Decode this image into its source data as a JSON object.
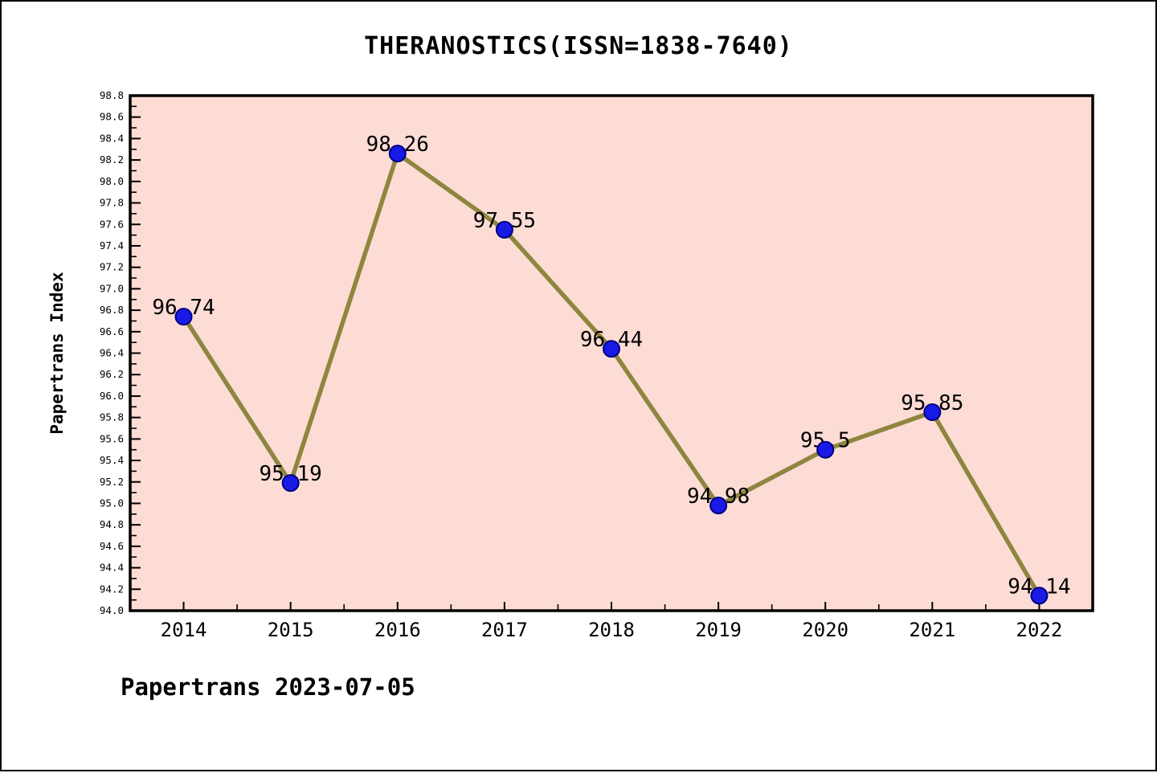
{
  "header": {
    "title": "THERANOSTICS(ISSN=1838-7640)"
  },
  "footer": {
    "credit": "Papertrans 2023-07-05"
  },
  "chart_data": {
    "type": "line",
    "title": "THERANOSTICS(ISSN=1838-7640)",
    "xlabel": "",
    "ylabel": "Papertrans Index",
    "categories": [
      2014,
      2015,
      2016,
      2017,
      2018,
      2019,
      2020,
      2021,
      2022
    ],
    "values": [
      96.74,
      95.19,
      98.26,
      97.55,
      96.44,
      94.98,
      95.5,
      95.85,
      94.14
    ],
    "point_labels": [
      "96.74",
      "95.19",
      "98.26",
      "97.55",
      "96.44",
      "94.98",
      "95.5",
      "95.85",
      "94.14"
    ],
    "xlim": [
      2013.5,
      2022.5
    ],
    "ylim": [
      94.0,
      98.8
    ],
    "y_major_step": 0.2,
    "y_minor_step": 0.1,
    "x_minor_step": 0.5,
    "grid": false,
    "legend_position": "none",
    "colors": {
      "plot_bg": "#fcdcd5",
      "line": "#8e863f",
      "marker_fill": "#1a1ae6",
      "marker_edge": "#000080",
      "axis": "#000000",
      "text": "#000000"
    }
  }
}
